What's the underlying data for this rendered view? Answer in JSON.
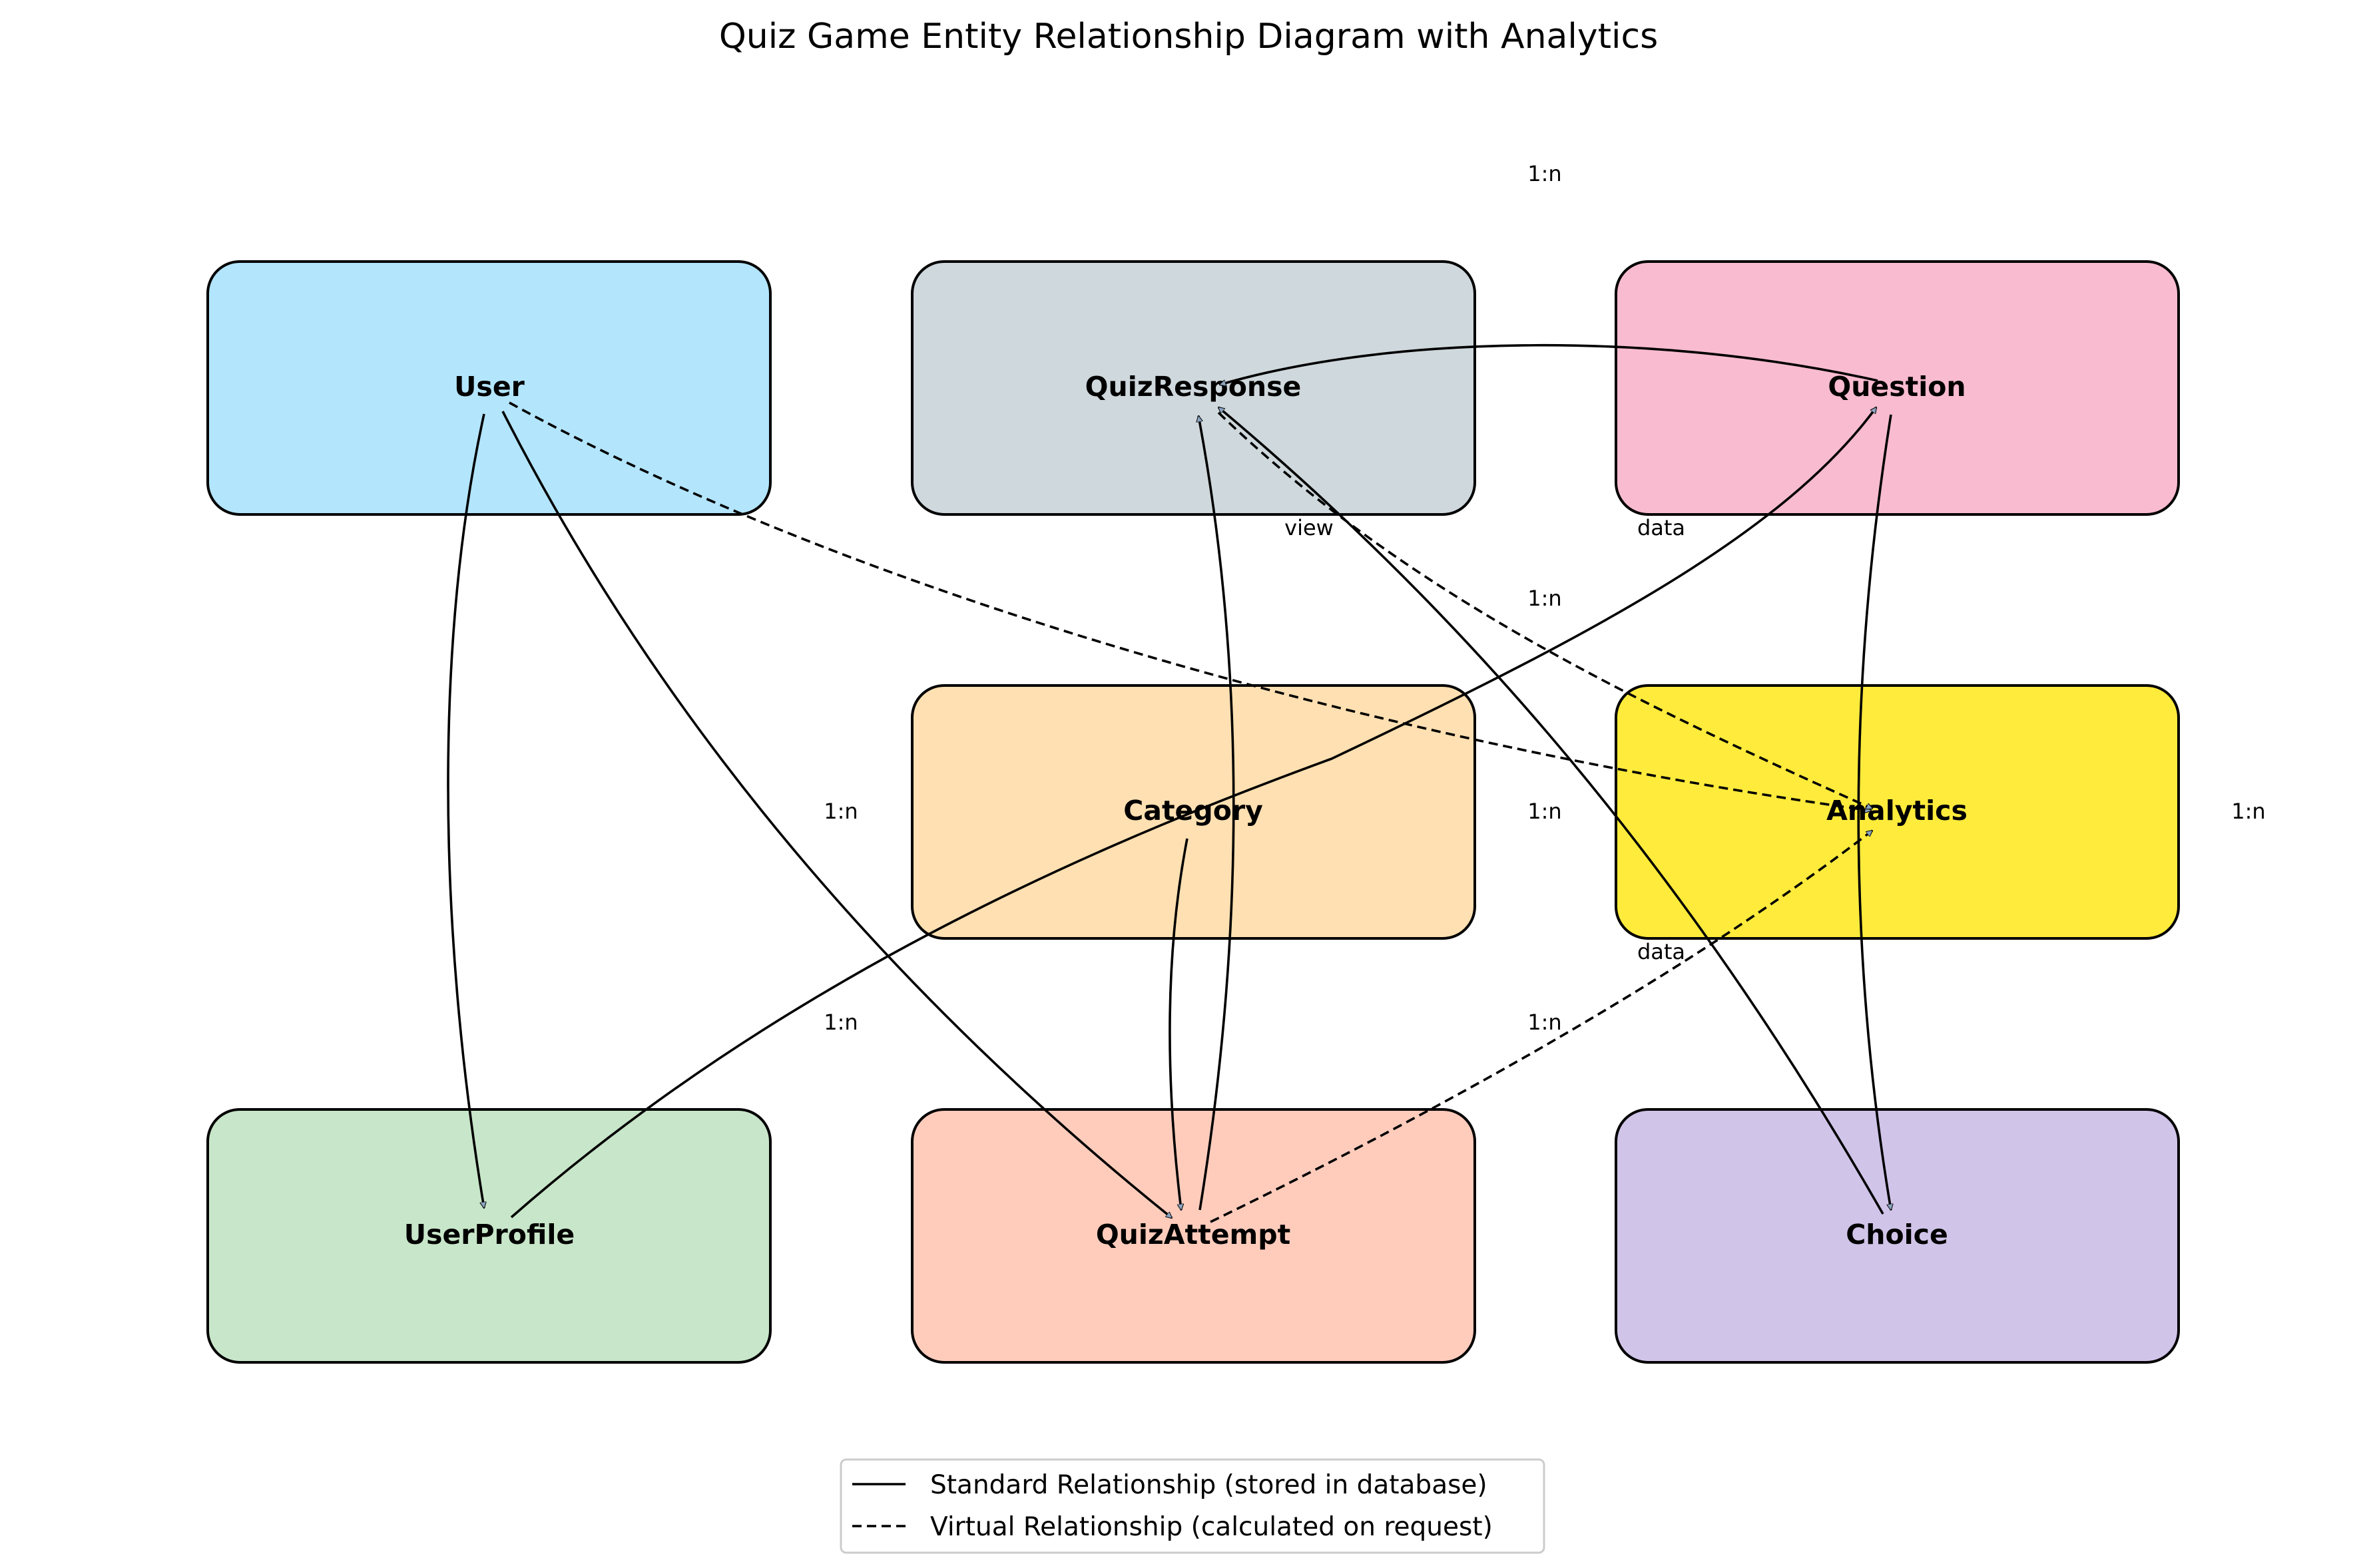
{
  "title": "Quiz Game Entity Relationship Diagram with Analytics",
  "entities": [
    {
      "id": "user",
      "name": "User",
      "color": "#b3e5fc"
    },
    {
      "id": "quizresponse",
      "name": "QuizResponse",
      "color": "#cfd8dc"
    },
    {
      "id": "question",
      "name": "Question",
      "color": "#f8bbd0"
    },
    {
      "id": "category",
      "name": "Category",
      "color": "#ffe0b2"
    },
    {
      "id": "analytics",
      "name": "Analytics",
      "color": "#ffeb3b"
    },
    {
      "id": "userprofile",
      "name": "UserProfile",
      "color": "#c8e6c9"
    },
    {
      "id": "quizattempt",
      "name": "QuizAttempt",
      "color": "#ffccbc"
    },
    {
      "id": "choice",
      "name": "Choice",
      "color": "#d1c4e9"
    }
  ],
  "relationships": [
    {
      "from": "User",
      "to": "UserProfile",
      "style": "solid"
    },
    {
      "from": "User",
      "to": "QuizAttempt",
      "style": "solid"
    },
    {
      "from": "User",
      "to": "Analytics",
      "style": "dashed"
    },
    {
      "from": "Question",
      "to": "QuizResponse",
      "style": "solid"
    },
    {
      "from": "Question",
      "to": "Choice",
      "style": "solid"
    },
    {
      "from": "Choice",
      "to": "QuizResponse",
      "style": "solid"
    },
    {
      "from": "QuizResponse",
      "to": "Analytics",
      "style": "dashed"
    },
    {
      "from": "QuizAttempt",
      "to": "QuizResponse",
      "style": "solid"
    },
    {
      "from": "QuizAttempt",
      "to": "Analytics",
      "style": "dashed"
    },
    {
      "from": "Category",
      "to": "QuizAttempt",
      "style": "solid"
    },
    {
      "from": "UserProfile",
      "to": "Question",
      "style": "solid"
    }
  ],
  "labels": {
    "top_1n": "1:n",
    "view": "view",
    "data_upper": "data",
    "mid_upper_1n": "1:n",
    "left_mid_1n": "1:n",
    "center_mid_1n": "1:n",
    "right_mid_1n": "1:n",
    "data_lower": "data",
    "left_lower_1n": "1:n",
    "center_lower_1n": "1:n"
  },
  "legend": {
    "solid": "Standard Relationship (stored in database)",
    "dashed": "Virtual Relationship (calculated on request)"
  }
}
